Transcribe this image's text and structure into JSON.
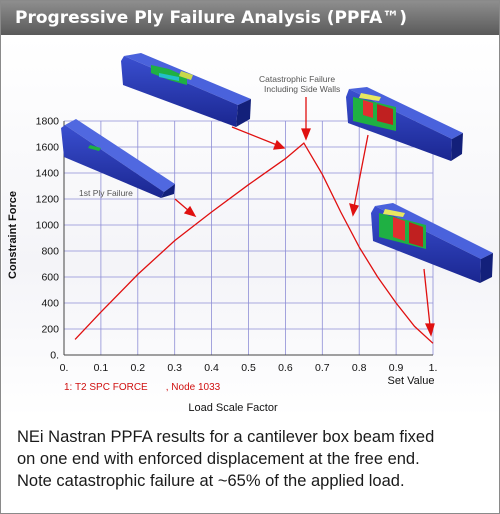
{
  "header": {
    "title": "Progressive Ply Failure Analysis (PPFA™)"
  },
  "chart_data": {
    "type": "line",
    "xlabel": "Load Scale Factor",
    "ylabel": "Constraint Force",
    "x_axis_caption": "Set Value",
    "xlim": [
      0,
      1
    ],
    "ylim": [
      0,
      1800
    ],
    "x_ticks": [
      "0.",
      "0.1",
      "0.2",
      "0.3",
      "0.4",
      "0.5",
      "0.6",
      "0.7",
      "0.8",
      "0.9",
      "1."
    ],
    "y_ticks": [
      "0.",
      "200",
      "400",
      "600",
      "800",
      "1000",
      "1200",
      "1400",
      "1600",
      "1800"
    ],
    "grid": true,
    "series": [
      {
        "name": "1: T2 SPC FORCE",
        "name_suffix": ", Node 1033",
        "color": "#e01010",
        "x": [
          0.03,
          0.1,
          0.2,
          0.3,
          0.4,
          0.5,
          0.6,
          0.65,
          0.7,
          0.75,
          0.8,
          0.85,
          0.9,
          0.95,
          1.0
        ],
        "y": [
          120,
          330,
          620,
          880,
          1100,
          1310,
          1510,
          1630,
          1390,
          1100,
          830,
          600,
          400,
          220,
          90
        ]
      }
    ],
    "annotations": [
      {
        "text": "1st Ply Failure"
      },
      {
        "text_lines": [
          "Catastrophic Failure",
          "Including Side Walls"
        ]
      }
    ]
  },
  "caption": {
    "lines": [
      "NEi Nastran PPFA results for a cantilever box beam fixed",
      "on one end with enforced displacement at the free end.",
      "Note catastrophic failure at  ~65% of the applied load."
    ]
  }
}
